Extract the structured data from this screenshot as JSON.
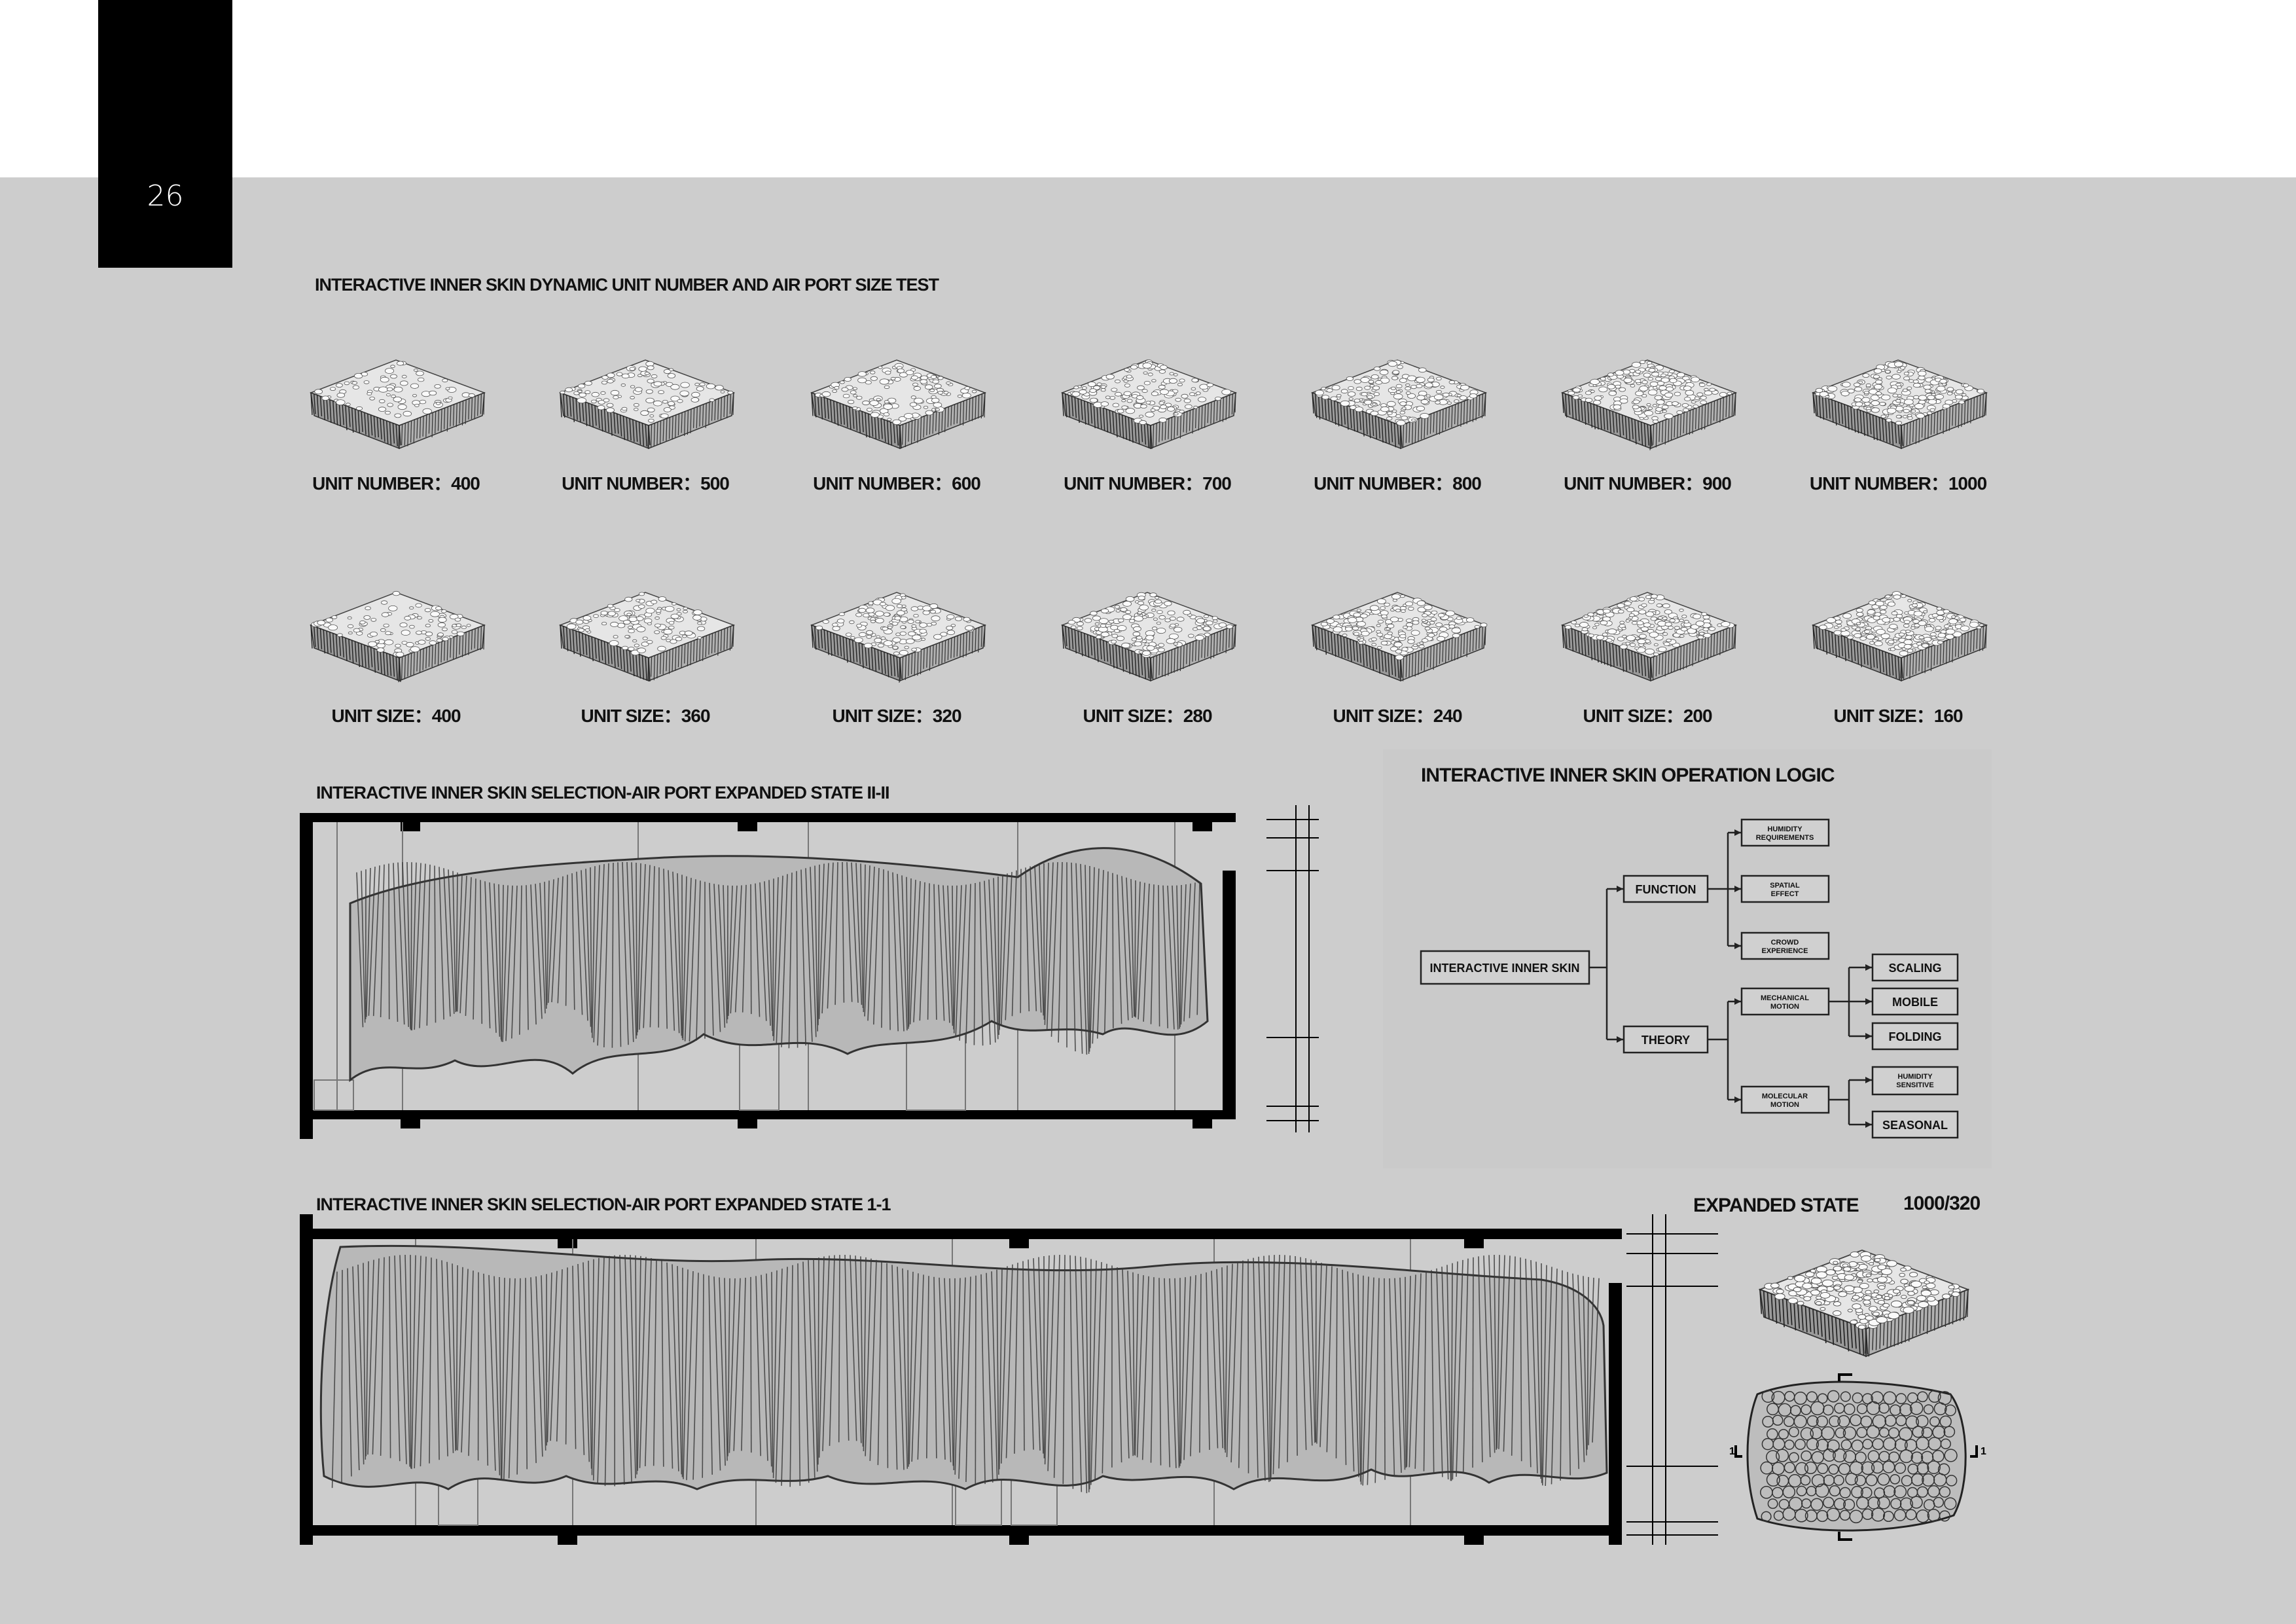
{
  "page": {
    "number": "26"
  },
  "test_section": {
    "title": "INTERACTIVE INNER SKIN DYNAMIC UNIT NUMBER AND AIR PORT SIZE TEST",
    "unit_number_row": [
      "UNIT NUMBER：400",
      "UNIT NUMBER：500",
      "UNIT NUMBER：600",
      "UNIT NUMBER：700",
      "UNIT NUMBER：800",
      "UNIT NUMBER：900",
      "UNIT NUMBER：1000"
    ],
    "unit_size_row": [
      "UNIT SIZE：400",
      "UNIT SIZE：360",
      "UNIT SIZE：320",
      "UNIT SIZE：280",
      "UNIT SIZE：240",
      "UNIT SIZE：200",
      "UNIT SIZE：160"
    ]
  },
  "section_2": {
    "title": "INTERACTIVE INNER SKIN SELECTION-AIR PORT EXPANDED STATE  II-II"
  },
  "section_1": {
    "title": "INTERACTIVE INNER SKIN SELECTION-AIR PORT EXPANDED STATE  1-1"
  },
  "logic": {
    "title": "INTERACTIVE INNER SKIN OPERATION LOGIC",
    "root": "INTERACTIVE INNER SKIN",
    "function": "FUNCTION",
    "theory": "THEORY",
    "humidity_req": [
      "HUMIDITY",
      "REQUIREMENTS"
    ],
    "spatial": [
      "SPATIAL",
      "EFFECT"
    ],
    "crowd": [
      "CROWD",
      "EXPERIENCE"
    ],
    "mechanical": [
      "MECHANICAL",
      "MOTION"
    ],
    "molecular": [
      "MOLECULAR",
      "MOTION"
    ],
    "scaling": "SCALING",
    "mobile": "MOBILE",
    "folding": "FOLDING",
    "humidity_sensitive": [
      "HUMIDITY",
      "SENSITIVE"
    ],
    "seasonal": "SEASONAL"
  },
  "expanded": {
    "title": "EXPANDED STATE",
    "ratio": "1000/320",
    "plan_mark": "1"
  }
}
